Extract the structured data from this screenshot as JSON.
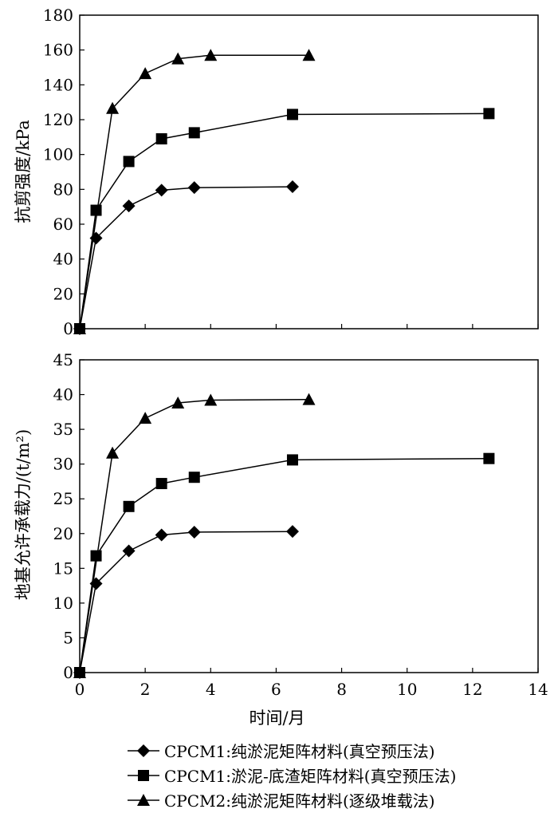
{
  "chart_data": [
    {
      "type": "line",
      "title": "",
      "xlabel": "",
      "ylabel": "抗剪强度/kPa",
      "xlim": [
        0,
        14
      ],
      "ylim": [
        0,
        180
      ],
      "yticks": [
        "0",
        "20",
        "40",
        "60",
        "80",
        "100",
        "120",
        "140",
        "160",
        "180"
      ],
      "xticks": [],
      "grid": false,
      "series": [
        {
          "name": "CPCM1:纯淤泥矩阵材料(真空预压法)",
          "marker": "diamond",
          "x": [
            0,
            0.5,
            1.5,
            2.5,
            3.5,
            6.5
          ],
          "y": [
            0,
            52,
            70.5,
            79.5,
            81,
            81.5
          ]
        },
        {
          "name": "CPCM1:淤泥-底渣矩阵材料(真空预压法)",
          "marker": "square",
          "x": [
            0,
            0.5,
            1.5,
            2.5,
            3.5,
            6.5,
            12.5
          ],
          "y": [
            0,
            68,
            96,
            109,
            112.5,
            123,
            123.5
          ]
        },
        {
          "name": "CPCM2:纯淤泥矩阵材料(逐级堆载法)",
          "marker": "triangle",
          "x": [
            0,
            1,
            2,
            3,
            4,
            7
          ],
          "y": [
            0,
            126.5,
            146.5,
            155,
            157,
            157
          ]
        }
      ]
    },
    {
      "type": "line",
      "title": "",
      "xlabel": "时间/月",
      "ylabel": "地基允许承载力/(t/m²)",
      "xlim": [
        0,
        14
      ],
      "ylim": [
        0,
        45
      ],
      "yticks": [
        "0",
        "5",
        "10",
        "15",
        "20",
        "25",
        "30",
        "35",
        "40",
        "45"
      ],
      "xticks": [
        "0",
        "2",
        "4",
        "6",
        "8",
        "10",
        "12",
        "14"
      ],
      "grid": false,
      "series": [
        {
          "name": "CPCM1:纯淤泥矩阵材料(真空预压法)",
          "marker": "diamond",
          "x": [
            0,
            0.5,
            1.5,
            2.5,
            3.5,
            6.5
          ],
          "y": [
            0,
            12.8,
            17.5,
            19.8,
            20.2,
            20.3
          ]
        },
        {
          "name": "CPCM1:淤泥-底渣矩阵材料(真空预压法)",
          "marker": "square",
          "x": [
            0,
            0.5,
            1.5,
            2.5,
            3.5,
            6.5,
            12.5
          ],
          "y": [
            0,
            16.8,
            23.9,
            27.2,
            28.1,
            30.6,
            30.8
          ]
        },
        {
          "name": "CPCM2:纯淤泥矩阵材料(逐级堆载法)",
          "marker": "triangle",
          "x": [
            0,
            1,
            2,
            3,
            4,
            7
          ],
          "y": [
            0,
            31.6,
            36.6,
            38.8,
            39.2,
            39.3
          ]
        }
      ]
    }
  ],
  "legend": {
    "placement": "bottom",
    "items": [
      {
        "marker": "diamond",
        "label": "CPCM1:纯淤泥矩阵材料(真空预压法)"
      },
      {
        "marker": "square",
        "label": "CPCM1:淤泥-底渣矩阵材料(真空预压法)"
      },
      {
        "marker": "triangle",
        "label": "CPCM2:纯淤泥矩阵材料(逐级堆载法)"
      }
    ]
  }
}
